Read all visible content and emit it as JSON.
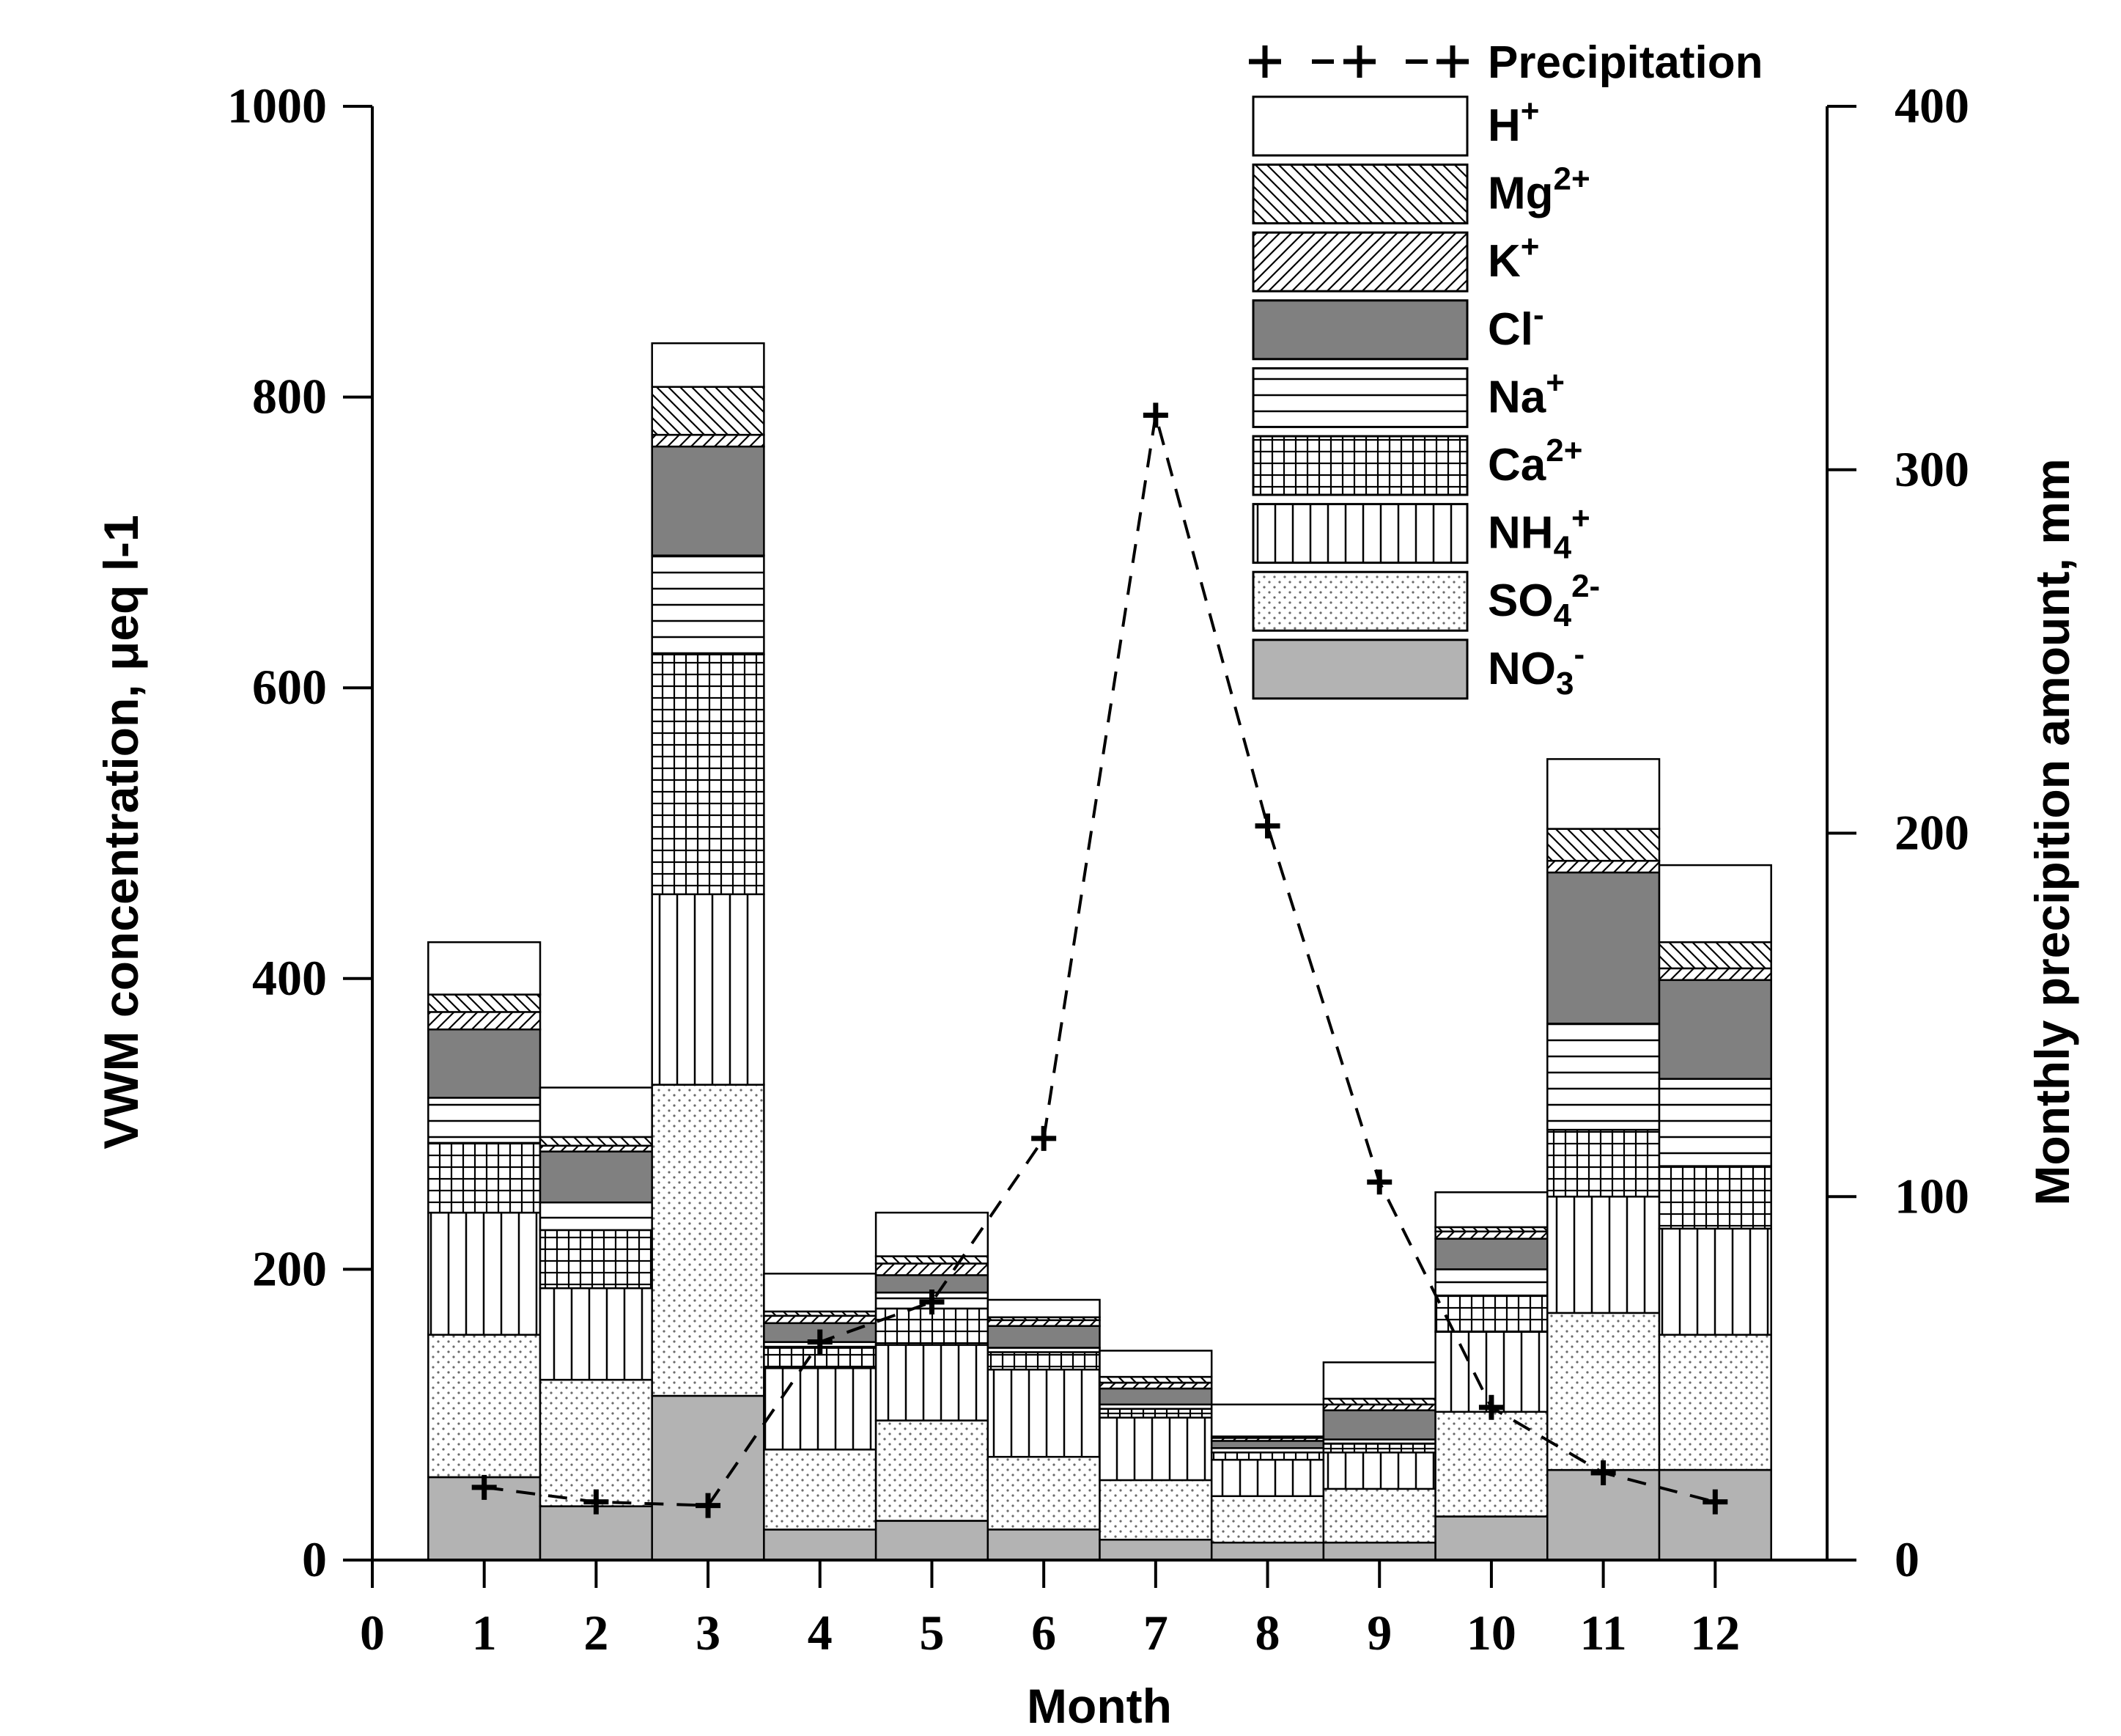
{
  "chart_data": {
    "type": "bar",
    "subtype": "stacked-bar-with-line",
    "xlabel": "Month",
    "ylabel_left": "VWM concentration, μeq l-1",
    "ylabel_right": "Monthly precipition amount, mm",
    "x_ticks": [
      "0",
      "1",
      "2",
      "3",
      "4",
      "5",
      "6",
      "7",
      "8",
      "9",
      "10",
      "11",
      "12"
    ],
    "xlim": [
      0,
      13
    ],
    "ylim_left": [
      0,
      1000
    ],
    "ylim_right": [
      0,
      400
    ],
    "y_ticks_left": [
      "0",
      "200",
      "400",
      "600",
      "800",
      "1000"
    ],
    "y_ticks_right": [
      "0",
      "100",
      "200",
      "300",
      "400"
    ],
    "categories": [
      "1",
      "2",
      "3",
      "4",
      "5",
      "6",
      "7",
      "8",
      "9",
      "10",
      "11",
      "12"
    ],
    "series": [
      {
        "name": "NO3-",
        "label": "NO",
        "sub": "3",
        "sup": "-",
        "pattern": "solid-light",
        "values": [
          57,
          37,
          113,
          21,
          27,
          21,
          14,
          12,
          12,
          30,
          62,
          62
        ]
      },
      {
        "name": "SO42-",
        "label": "SO",
        "sub": "4",
        "sup": "2-",
        "pattern": "dots",
        "values": [
          98,
          87,
          214,
          55,
          69,
          50,
          41,
          32,
          37,
          72,
          108,
          93
        ]
      },
      {
        "name": "NH4+",
        "label": "NH",
        "sub": "4",
        "sup": "+",
        "pattern": "vlines",
        "values": [
          84,
          63,
          131,
          56,
          52,
          60,
          43,
          25,
          25,
          55,
          80,
          73
        ]
      },
      {
        "name": "Ca2+",
        "label": "Ca",
        "sub": "",
        "sup": "2+",
        "pattern": "grid",
        "values": [
          48,
          40,
          165,
          14,
          25,
          12,
          6,
          5,
          6,
          25,
          46,
          43
        ]
      },
      {
        "name": "Na+",
        "label": "Na",
        "sub": "",
        "sup": "+",
        "pattern": "hlines",
        "values": [
          31,
          19,
          68,
          4,
          11,
          3,
          3,
          3,
          3,
          18,
          73,
          60
        ]
      },
      {
        "name": "Cl-",
        "label": "Cl",
        "sub": "",
        "sup": "-",
        "pattern": "solid-dark",
        "values": [
          47,
          35,
          75,
          13,
          12,
          15,
          11,
          5,
          20,
          21,
          104,
          68
        ]
      },
      {
        "name": "K+",
        "label": "K",
        "sub": "",
        "sup": "+",
        "pattern": "fwd-diag",
        "values": [
          12,
          4,
          8,
          5,
          8,
          4,
          4,
          2,
          4,
          5,
          8,
          8
        ]
      },
      {
        "name": "Mg2+",
        "label": "Mg",
        "sub": "",
        "sup": "2+",
        "pattern": "back-diag",
        "values": [
          12,
          6,
          33,
          3,
          5,
          2,
          4,
          1,
          4,
          3,
          22,
          18
        ]
      },
      {
        "name": "H+",
        "label": "H",
        "sub": "",
        "sup": "+",
        "pattern": "none",
        "values": [
          36,
          34,
          30,
          26,
          30,
          12,
          18,
          22,
          25,
          24,
          48,
          53
        ]
      }
    ],
    "line_series": {
      "name": "Precipitation",
      "axis": "right",
      "style": "dashed with plus markers",
      "x": [
        1,
        2,
        3,
        4,
        5,
        6,
        7,
        8,
        9,
        10,
        11,
        12
      ],
      "values": [
        20,
        16,
        15,
        60,
        71,
        116,
        315,
        202,
        104,
        42,
        24,
        16
      ]
    },
    "legend_position": "top-right"
  }
}
